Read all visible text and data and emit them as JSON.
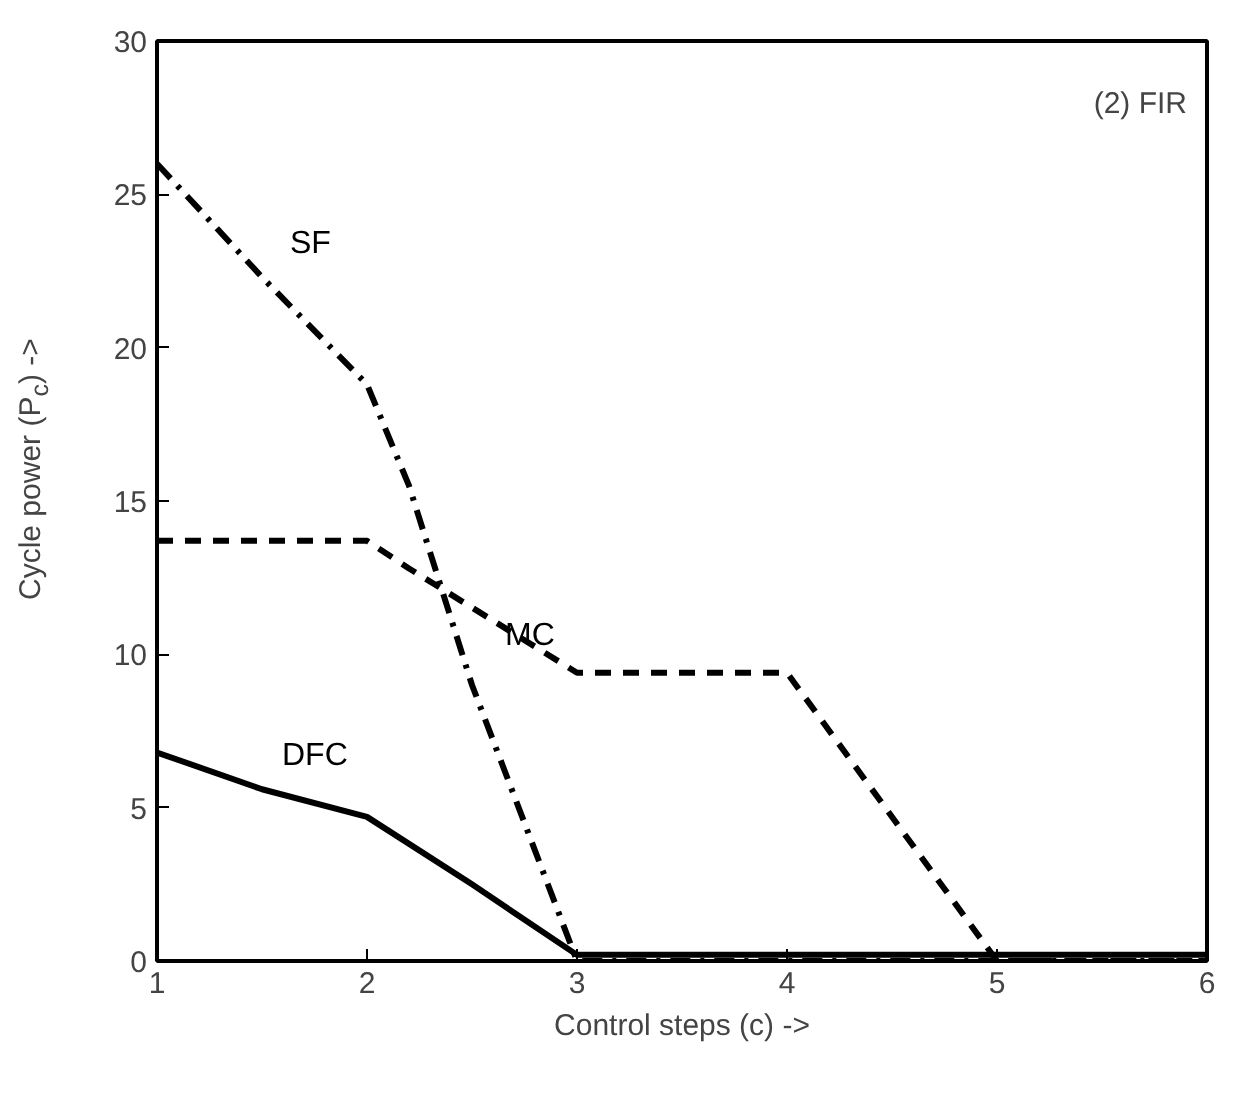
{
  "chart_data": {
    "type": "line",
    "xlabel": "Control steps (c) ->",
    "ylabel": "Cycle power (P$_{c}$) ->",
    "annotations": [
      "(2) FIR"
    ],
    "xlim": [
      1,
      6
    ],
    "ylim": [
      0,
      30
    ],
    "xticks": [
      1,
      2,
      3,
      4,
      5,
      6
    ],
    "yticks": [
      0,
      5,
      10,
      15,
      20,
      25,
      30
    ],
    "grid": false,
    "legend": false,
    "series": [
      {
        "name": "SF",
        "color": "#000000",
        "line_style": "dashdot",
        "x": [
          1,
          1.5,
          2,
          2.2,
          2.5,
          3,
          4,
          5,
          6
        ],
        "values": [
          26,
          22.3,
          18.8,
          15.5,
          9,
          0,
          0,
          0,
          0
        ]
      },
      {
        "name": "MC",
        "color": "#000000",
        "line_style": "dashed",
        "x": [
          1,
          2,
          2.2,
          3,
          4,
          5,
          6
        ],
        "values": [
          13.7,
          13.7,
          12.8,
          9.4,
          9.4,
          0,
          0
        ]
      },
      {
        "name": "DFC",
        "color": "#000000",
        "line_style": "solid",
        "x": [
          1,
          1.5,
          2,
          2.5,
          3,
          4,
          5,
          6
        ],
        "values": [
          6.8,
          5.6,
          4.7,
          2.5,
          0.2,
          0.2,
          0.2,
          0.2
        ]
      }
    ]
  }
}
